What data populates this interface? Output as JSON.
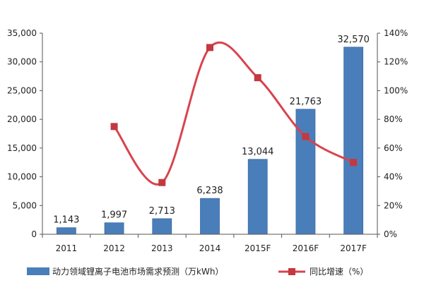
{
  "chart_data": {
    "type": "bar",
    "categories": [
      "2011",
      "2012",
      "2013",
      "2014",
      "2015F",
      "2016F",
      "2017F"
    ],
    "series": [
      {
        "name": "动力领域锂离子电池市场需求预测（万kWh）",
        "type": "bar",
        "axis": "left",
        "values": [
          1143,
          1997,
          2713,
          6238,
          13044,
          21763,
          32570
        ],
        "labels": [
          "1,143",
          "1,997",
          "2,713",
          "6,238",
          "13,044",
          "21,763",
          "32,570"
        ]
      },
      {
        "name": "同比增速（%）",
        "type": "line",
        "axis": "right",
        "values": [
          null,
          75,
          36,
          130,
          109,
          68,
          50
        ]
      }
    ],
    "left_axis": {
      "ylim": [
        0,
        35000
      ],
      "ticks": [
        "0",
        "5,000",
        "10,000",
        "15,000",
        "20,000",
        "25,000",
        "30,000",
        "35,000"
      ]
    },
    "right_axis": {
      "ylim": [
        0,
        140
      ],
      "ticks": [
        "0%",
        "20%",
        "40%",
        "60%",
        "80%",
        "100%",
        "120%",
        "140%"
      ]
    },
    "grid": false,
    "legend": "bottom",
    "colors": {
      "bar": "#4a7ebb",
      "bar_edge": "#3a6aa3",
      "line": "#d9434e",
      "marker": "#c4383f"
    }
  }
}
